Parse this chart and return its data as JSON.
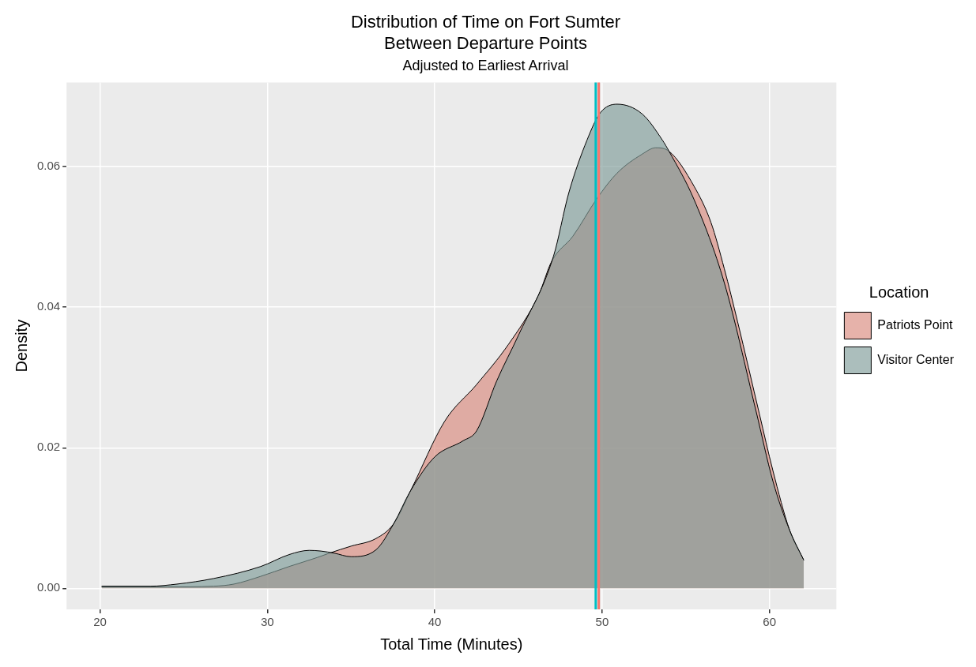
{
  "chart_data": {
    "type": "area",
    "title": [
      "Distribution of Time on Fort Sumter",
      "Between Departure Points"
    ],
    "subtitle": "Adjusted to Earliest Arrival",
    "xlabel": "Total Time (Minutes)",
    "ylabel": "Density",
    "legend_title": "Location",
    "legend": "right",
    "grid": true,
    "marker": "none",
    "xlim": [
      18,
      64
    ],
    "ylim": [
      -0.003,
      0.072
    ],
    "xticks": [
      20,
      30,
      40,
      50,
      60
    ],
    "yticks": [
      {
        "value": 0,
        "label": "0.00"
      },
      {
        "value": 0.02,
        "label": "0.02"
      },
      {
        "value": 0.04,
        "label": "0.04"
      },
      {
        "value": 0.06,
        "label": "0.06"
      }
    ],
    "series": [
      {
        "name": "Patriots Point",
        "color": "#d98a7e",
        "x": [
          20.1,
          24,
          26.8,
          28,
          29.6,
          31.3,
          33,
          33.7,
          35,
          36.5,
          37.55,
          38.56,
          40.6,
          42.5,
          44.4,
          46.2,
          47,
          48.25,
          49.7,
          50.9,
          52.4,
          53.2,
          54,
          55.5,
          56.5,
          57.3,
          58.1,
          59.4,
          60.2,
          61.2,
          62.05
        ],
        "values": [
          0.0002,
          0.0002,
          0.0003,
          0.0006,
          0.0017,
          0.0031,
          0.0044,
          0.005,
          0.006,
          0.0071,
          0.0092,
          0.0139,
          0.0238,
          0.029,
          0.0347,
          0.0417,
          0.0466,
          0.0501,
          0.0555,
          0.0591,
          0.0618,
          0.0627,
          0.0622,
          0.0572,
          0.0521,
          0.0455,
          0.0379,
          0.0248,
          0.0168,
          0.0083,
          0.004
        ]
      },
      {
        "name": "Visitor Center",
        "color": "#7f9d99",
        "x": [
          20.1,
          23,
          24.6,
          26.8,
          29.6,
          31.3,
          32.5,
          33.2,
          34,
          35,
          36.5,
          37.55,
          38.56,
          40,
          41.7,
          42.5,
          43.7,
          45,
          47.1,
          48,
          49.1,
          49.9,
          50.9,
          52.4,
          53.6,
          54,
          55.5,
          57.3,
          59.2,
          60.2,
          61.2,
          62.05
        ],
        "values": [
          0.0003,
          0.0003,
          0.0006,
          0.0014,
          0.0031,
          0.0048,
          0.0054,
          0.0053,
          0.005,
          0.0045,
          0.0055,
          0.0092,
          0.0139,
          0.0187,
          0.021,
          0.0224,
          0.0295,
          0.036,
          0.0473,
          0.0562,
          0.0638,
          0.0677,
          0.0689,
          0.0675,
          0.0638,
          0.0622,
          0.0553,
          0.0435,
          0.0252,
          0.0153,
          0.0083,
          0.004
        ]
      }
    ],
    "ref_lines": [
      {
        "axis": "x",
        "value": 49.62,
        "color": "#00bfc4"
      },
      {
        "axis": "x",
        "value": 49.8,
        "color": "#f8766d"
      }
    ]
  }
}
